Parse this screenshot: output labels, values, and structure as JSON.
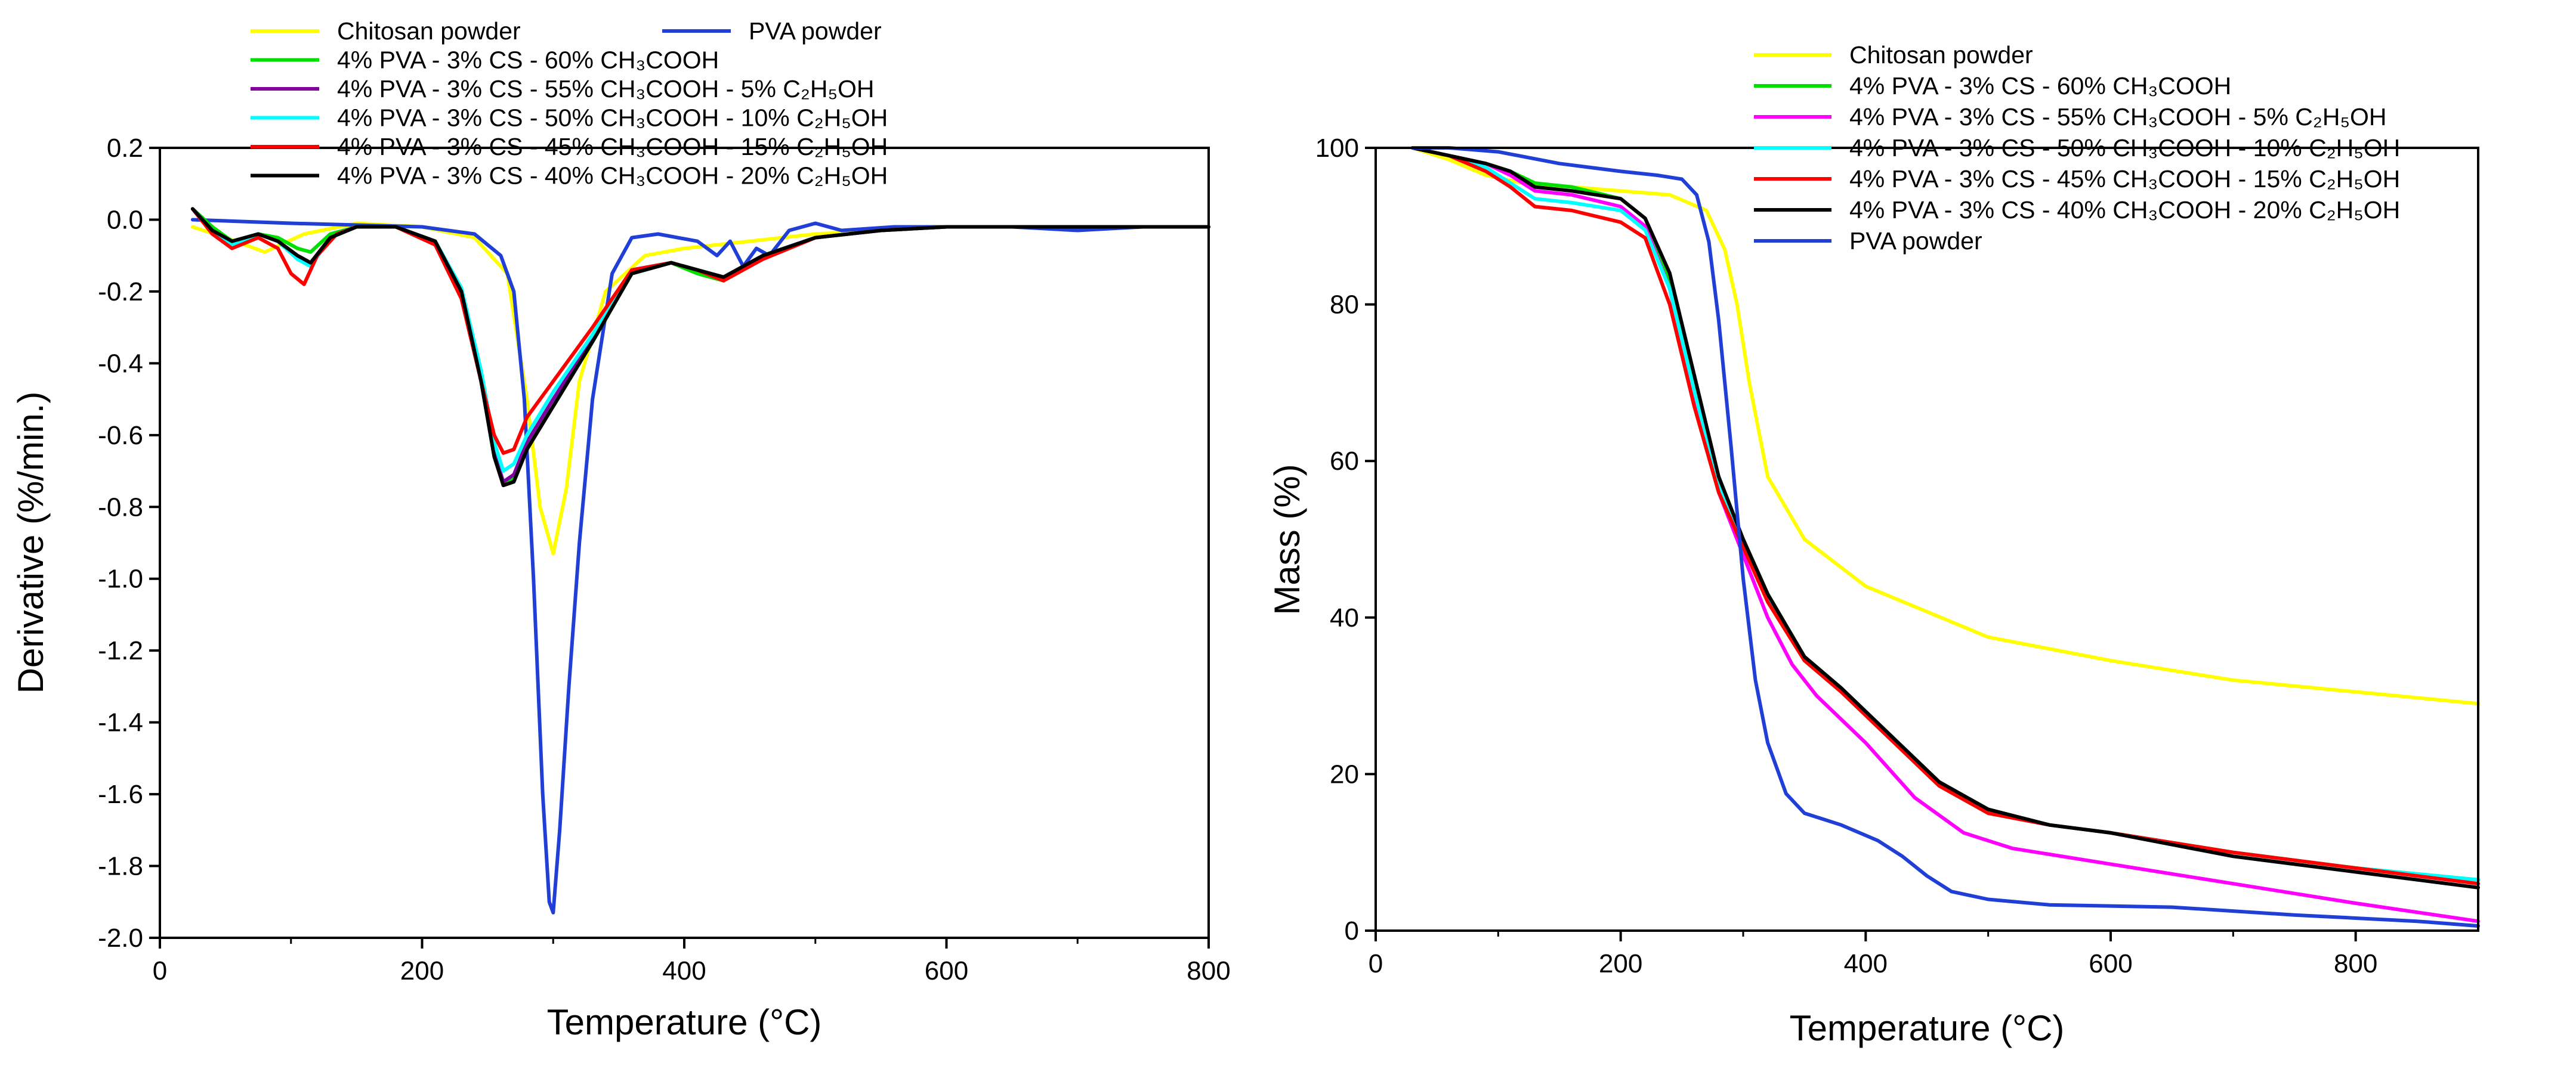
{
  "figure": {
    "panels": [
      "dtg-panel",
      "tga-panel"
    ]
  },
  "chart_data": [
    {
      "id": "dtg",
      "type": "line",
      "title": "",
      "xlabel": "Temperature (°C)",
      "ylabel": "Derivative (%/min.)",
      "xlim": [
        0,
        800
      ],
      "ylim": [
        -2.0,
        0.2
      ],
      "xticks": [
        0,
        200,
        400,
        600,
        800
      ],
      "xtick_labels": [
        "0",
        "200",
        "400",
        "600",
        "800"
      ],
      "yticks": [
        0.2,
        0.0,
        -0.2,
        -0.4,
        -0.6,
        -0.8,
        -1.0,
        -1.2,
        -1.4,
        -1.6,
        -1.8,
        -2.0
      ],
      "ytick_labels": [
        "0.2",
        "0.0",
        "-0.2",
        "-0.4",
        "-0.6",
        "-0.8",
        "-1.0",
        "-1.2",
        "-1.4",
        "-1.6",
        "-1.8",
        "-2.0"
      ],
      "grid": false,
      "legend_position": "top, above plot",
      "legend": [
        {
          "label": "Chitosan powder",
          "color": "#ffff00"
        },
        {
          "label": "PVA  powder",
          "color": "#1f3fd6"
        },
        {
          "label": "4% PVA - 3% CS - 60% CH₃COOH",
          "color": "#00e000"
        },
        {
          "label": "4% PVA - 3% CS - 55% CH₃COOH - 5% C₂H₅OH",
          "color": "#8000a0"
        },
        {
          "label": "4% PVA - 3% CS - 50% CH₃COOH - 10% C₂H₅OH",
          "color": "#00ffff"
        },
        {
          "label": "4% PVA - 3% CS - 45% CH₃COOH - 15% C₂H₅OH",
          "color": "#ff0000"
        },
        {
          "label": "4% PVA - 3% CS - 40% CH₃COOH - 20% C₂H₅OH",
          "color": "#000000"
        }
      ],
      "series": [
        {
          "name": "Chitosan powder",
          "color": "#ffff00",
          "x": [
            25,
            50,
            80,
            110,
            150,
            200,
            240,
            265,
            280,
            290,
            300,
            310,
            320,
            340,
            370,
            400,
            450,
            500,
            600,
            700,
            800
          ],
          "y": [
            -0.02,
            -0.05,
            -0.09,
            -0.04,
            -0.01,
            -0.02,
            -0.05,
            -0.15,
            -0.5,
            -0.8,
            -0.93,
            -0.75,
            -0.45,
            -0.2,
            -0.1,
            -0.08,
            -0.06,
            -0.04,
            -0.02,
            -0.02,
            -0.02
          ]
        },
        {
          "name": "PVA  powder",
          "color": "#1f3fd6",
          "x": [
            25,
            100,
            200,
            240,
            260,
            270,
            278,
            285,
            292,
            297,
            300,
            305,
            312,
            320,
            330,
            345,
            360,
            380,
            410,
            425,
            435,
            445,
            455,
            465,
            480,
            500,
            520,
            560,
            600,
            650,
            700,
            750,
            800
          ],
          "y": [
            0.0,
            -0.01,
            -0.02,
            -0.04,
            -0.1,
            -0.2,
            -0.5,
            -1.0,
            -1.6,
            -1.9,
            -1.93,
            -1.7,
            -1.3,
            -0.9,
            -0.5,
            -0.15,
            -0.05,
            -0.04,
            -0.06,
            -0.1,
            -0.06,
            -0.13,
            -0.08,
            -0.1,
            -0.03,
            -0.01,
            -0.03,
            -0.02,
            -0.02,
            -0.02,
            -0.03,
            -0.02,
            -0.02
          ]
        },
        {
          "name": "4% PVA - 3% CS - 60% CH₃COOH",
          "color": "#00e000",
          "x": [
            25,
            40,
            55,
            75,
            90,
            105,
            115,
            130,
            150,
            180,
            210,
            230,
            245,
            255,
            262,
            270,
            280,
            300,
            330,
            360,
            390,
            410,
            430,
            460,
            500,
            550,
            600,
            700,
            760,
            800
          ],
          "y": [
            0.03,
            -0.02,
            -0.06,
            -0.04,
            -0.05,
            -0.08,
            -0.09,
            -0.04,
            -0.02,
            -0.02,
            -0.06,
            -0.2,
            -0.45,
            -0.65,
            -0.74,
            -0.72,
            -0.63,
            -0.52,
            -0.34,
            -0.15,
            -0.12,
            -0.15,
            -0.17,
            -0.1,
            -0.05,
            -0.03,
            -0.02,
            -0.02,
            -0.02,
            -0.02
          ]
        },
        {
          "name": "4% PVA - 3% CS - 55% CH₃COOH - 5% C₂H₅OH",
          "color": "#8000a0",
          "x": [
            25,
            40,
            55,
            75,
            90,
            105,
            115,
            130,
            150,
            180,
            210,
            230,
            245,
            255,
            262,
            270,
            280,
            300,
            330,
            360,
            390,
            410,
            430,
            460,
            500,
            550,
            600,
            700,
            800
          ],
          "y": [
            0.03,
            -0.03,
            -0.07,
            -0.04,
            -0.06,
            -0.1,
            -0.12,
            -0.05,
            -0.02,
            -0.02,
            -0.06,
            -0.2,
            -0.45,
            -0.65,
            -0.73,
            -0.71,
            -0.62,
            -0.5,
            -0.33,
            -0.14,
            -0.12,
            -0.14,
            -0.16,
            -0.1,
            -0.05,
            -0.03,
            -0.02,
            -0.02,
            -0.02
          ]
        },
        {
          "name": "4% PVA - 3% CS - 50% CH₃COOH - 10% C₂H₅OH",
          "color": "#00ffff",
          "x": [
            25,
            40,
            55,
            75,
            90,
            105,
            115,
            130,
            150,
            180,
            210,
            230,
            245,
            255,
            262,
            270,
            280,
            300,
            330,
            360,
            390,
            410,
            430,
            460,
            500,
            550,
            600,
            700,
            800
          ],
          "y": [
            0.03,
            -0.03,
            -0.07,
            -0.04,
            -0.06,
            -0.11,
            -0.13,
            -0.05,
            -0.02,
            -0.02,
            -0.06,
            -0.19,
            -0.42,
            -0.62,
            -0.7,
            -0.68,
            -0.6,
            -0.48,
            -0.32,
            -0.14,
            -0.12,
            -0.14,
            -0.16,
            -0.1,
            -0.05,
            -0.03,
            -0.02,
            -0.02,
            -0.02
          ]
        },
        {
          "name": "4% PVA - 3% CS - 45% CH₃COOH - 15% C₂H₅OH",
          "color": "#ff0000",
          "x": [
            25,
            40,
            55,
            75,
            90,
            100,
            110,
            120,
            135,
            150,
            180,
            210,
            230,
            245,
            255,
            262,
            270,
            280,
            300,
            330,
            360,
            390,
            410,
            430,
            460,
            500,
            550,
            600,
            700,
            800
          ],
          "y": [
            0.03,
            -0.04,
            -0.08,
            -0.05,
            -0.08,
            -0.15,
            -0.18,
            -0.1,
            -0.04,
            -0.02,
            -0.02,
            -0.07,
            -0.22,
            -0.45,
            -0.6,
            -0.65,
            -0.64,
            -0.55,
            -0.45,
            -0.3,
            -0.14,
            -0.12,
            -0.14,
            -0.17,
            -0.11,
            -0.05,
            -0.03,
            -0.02,
            -0.02,
            -0.02
          ]
        },
        {
          "name": "4% PVA - 3% CS - 40% CH₃COOH - 20% C₂H₅OH",
          "color": "#000000",
          "x": [
            25,
            40,
            55,
            75,
            90,
            105,
            115,
            130,
            150,
            180,
            210,
            230,
            245,
            255,
            262,
            270,
            280,
            300,
            330,
            360,
            390,
            410,
            430,
            460,
            500,
            550,
            600,
            700,
            800
          ],
          "y": [
            0.03,
            -0.03,
            -0.06,
            -0.04,
            -0.06,
            -0.1,
            -0.12,
            -0.05,
            -0.02,
            -0.02,
            -0.06,
            -0.2,
            -0.45,
            -0.66,
            -0.74,
            -0.73,
            -0.64,
            -0.52,
            -0.34,
            -0.15,
            -0.12,
            -0.14,
            -0.16,
            -0.1,
            -0.05,
            -0.03,
            -0.02,
            -0.02,
            -0.02
          ]
        }
      ]
    },
    {
      "id": "tga",
      "type": "line",
      "title": "",
      "xlabel": "Temperature (°C)",
      "ylabel": "Mass (%)",
      "xlim": [
        0,
        900
      ],
      "ylim": [
        0,
        100
      ],
      "xticks": [
        0,
        200,
        400,
        600,
        800
      ],
      "xtick_labels": [
        "0",
        "200",
        "400",
        "600",
        "800"
      ],
      "yticks": [
        0,
        20,
        40,
        60,
        80,
        100
      ],
      "ytick_labels": [
        "0",
        "20",
        "40",
        "60",
        "80",
        "100"
      ],
      "grid": false,
      "legend_position": "top-right",
      "legend": [
        {
          "label": "Chitosan powder",
          "color": "#ffff00"
        },
        {
          "label": "4% PVA - 3% CS - 60% CH₃COOH",
          "color": "#00e000"
        },
        {
          "label": "4% PVA - 3% CS - 55% CH₃COOH - 5% C₂H₅OH",
          "color": "#ff00ff"
        },
        {
          "label": "4% PVA - 3% CS - 50% CH₃COOH - 10% C₂H₅OH",
          "color": "#00ffff"
        },
        {
          "label": "4% PVA - 3% CS - 45% CH₃COOH - 15% C₂H₅OH",
          "color": "#ff0000"
        },
        {
          "label": "4% PVA - 3% CS - 40% CH₃COOH - 20% C₂H₅OH",
          "color": "#000000"
        },
        {
          "label": "PVA  powder",
          "color": "#1f3fd6"
        }
      ],
      "series": [
        {
          "name": "Chitosan powder",
          "color": "#ffff00",
          "x": [
            30,
            60,
            90,
            120,
            160,
            200,
            240,
            270,
            285,
            295,
            305,
            320,
            350,
            400,
            500,
            600,
            700,
            800,
            900
          ],
          "y": [
            100,
            98.5,
            96.5,
            95.5,
            95,
            94.5,
            94,
            92,
            87,
            80,
            70,
            58,
            50,
            44,
            37.5,
            34.5,
            32,
            30.5,
            29
          ]
        },
        {
          "name": "4% PVA - 3% CS - 60% CH₃COOH",
          "color": "#00e000",
          "x": [
            30,
            60,
            90,
            110,
            130,
            160,
            200,
            220,
            240,
            260,
            280,
            300,
            320,
            350,
            380,
            420,
            460,
            500,
            550,
            600,
            700,
            800,
            900
          ],
          "y": [
            100,
            99,
            98,
            97,
            95.5,
            95,
            93.5,
            91,
            83,
            70,
            58,
            50,
            43,
            35,
            31,
            25,
            19,
            15.5,
            13.5,
            12.5,
            10,
            8,
            6.5
          ]
        },
        {
          "name": "4% PVA - 3% CS - 55% CH₃COOH - 5% C₂H₅OH",
          "color": "#ff00ff",
          "x": [
            30,
            60,
            90,
            110,
            130,
            160,
            200,
            220,
            240,
            260,
            280,
            300,
            320,
            340,
            360,
            400,
            440,
            480,
            520,
            600,
            700,
            800,
            900
          ],
          "y": [
            100,
            99,
            98,
            96.5,
            94.5,
            94,
            92.5,
            90,
            82,
            68,
            56,
            48,
            40,
            34,
            30,
            24,
            17,
            12.5,
            10.5,
            8.5,
            6,
            3.5,
            1.2
          ]
        },
        {
          "name": "4% PVA - 3% CS - 50% CH₃COOH - 10% C₂H₅OH",
          "color": "#00ffff",
          "x": [
            30,
            60,
            90,
            110,
            130,
            160,
            200,
            220,
            240,
            260,
            280,
            300,
            320,
            350,
            380,
            420,
            460,
            500,
            550,
            600,
            700,
            800,
            900
          ],
          "y": [
            100,
            99,
            97.5,
            95.5,
            93.5,
            93,
            92,
            89.5,
            82,
            69,
            57,
            49.5,
            42.5,
            34.5,
            30.5,
            24.5,
            18.5,
            15,
            13.5,
            12.5,
            10,
            8,
            6.5
          ]
        },
        {
          "name": "4% PVA - 3% CS - 45% CH₃COOH - 15% C₂H₅OH",
          "color": "#ff0000",
          "x": [
            30,
            60,
            90,
            110,
            130,
            160,
            200,
            220,
            240,
            260,
            280,
            300,
            320,
            350,
            380,
            420,
            460,
            500,
            550,
            600,
            700,
            800,
            900
          ],
          "y": [
            100,
            99,
            97,
            95,
            92.5,
            92,
            90.5,
            88.5,
            80,
            67,
            56,
            49,
            42,
            34.5,
            30.5,
            24.5,
            18.5,
            15,
            13.5,
            12.5,
            10,
            8,
            6
          ]
        },
        {
          "name": "4% PVA - 3% CS - 40% CH₃COOH - 20% C₂H₅OH",
          "color": "#000000",
          "x": [
            30,
            60,
            90,
            110,
            130,
            160,
            200,
            220,
            240,
            260,
            280,
            300,
            320,
            350,
            380,
            420,
            460,
            500,
            550,
            600,
            700,
            800,
            900
          ],
          "y": [
            100,
            99,
            98,
            97,
            95,
            94.5,
            93.5,
            91,
            84,
            71,
            58,
            50,
            43,
            35,
            31,
            25,
            19,
            15.5,
            13.5,
            12.5,
            9.5,
            7.5,
            5.5
          ]
        },
        {
          "name": "PVA  powder",
          "color": "#1f3fd6",
          "x": [
            30,
            60,
            100,
            150,
            200,
            230,
            250,
            262,
            272,
            280,
            290,
            300,
            310,
            320,
            335,
            350,
            380,
            410,
            430,
            450,
            470,
            500,
            550,
            650,
            750,
            850,
            900
          ],
          "y": [
            100,
            100,
            99.5,
            98,
            97,
            96.5,
            96,
            94,
            88,
            78,
            62,
            45,
            32,
            24,
            17.5,
            15,
            13.5,
            11.5,
            9.5,
            7,
            5,
            4,
            3.3,
            3,
            2,
            1.2,
            0.6
          ]
        }
      ]
    }
  ]
}
